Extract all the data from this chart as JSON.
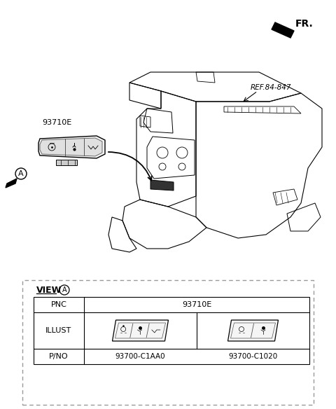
{
  "bg_color": "#ffffff",
  "fr_label": "FR.",
  "ref_label": "REF.84-847",
  "part_label": "93710E",
  "circle_label": "A",
  "view_label": "VIEW",
  "pnc_label": "PNC",
  "illust_label": "ILLUST",
  "pno_label": "P/NO",
  "pnc_value": "93710E",
  "pno_left": "93700-C1AA0",
  "pno_right": "93700-C1020",
  "lc": "#000000",
  "lc_gray": "#555555",
  "dash_color": "#aaaaaa",
  "fs_title": 10,
  "fs_label": 8,
  "fs_small": 7,
  "fs_ref": 7.5
}
